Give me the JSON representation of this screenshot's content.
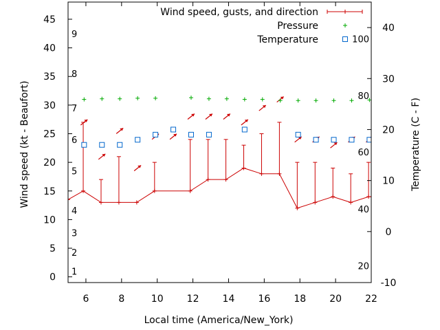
{
  "chart_data": {
    "type": "line",
    "xlabel": "Local time (America/New_York)",
    "ylabel": "Wind speed (kt - Beaufort)",
    "y2label": "Temperature (C - F)",
    "xlim": [
      5,
      22
    ],
    "ylim": [
      -1,
      48
    ],
    "y2lim": [
      -10,
      45
    ],
    "x_ticks": [
      6,
      8,
      10,
      12,
      14,
      16,
      18,
      20,
      22
    ],
    "y_ticks": [
      0,
      5,
      10,
      15,
      20,
      25,
      30,
      35,
      40,
      45
    ],
    "y2_ticks": [
      -10,
      0,
      10,
      20,
      30,
      40
    ],
    "beaufort_labels": [
      {
        "label": "1",
        "y": 1
      },
      {
        "label": "2",
        "y": 4.3
      },
      {
        "label": "3",
        "y": 7.7
      },
      {
        "label": "4",
        "y": 11.6
      },
      {
        "label": "5",
        "y": 18.5
      },
      {
        "label": "6",
        "y": 24
      },
      {
        "label": "7",
        "y": 29.5
      },
      {
        "label": "8",
        "y": 35.5
      },
      {
        "label": "9",
        "y": 42.5
      }
    ],
    "fahrenheit_labels": [
      {
        "label": "20",
        "y": -6.7
      },
      {
        "label": "40",
        "y": 4.4
      },
      {
        "label": "60",
        "y": 15.6
      },
      {
        "label": "80",
        "y": 26.7
      },
      {
        "label": "100",
        "y": 37.8
      }
    ],
    "legend": {
      "placement": "top-right",
      "entries": [
        {
          "label": "Wind speed, gusts, and direction",
          "color": "#cc0000",
          "marker": "line-plus"
        },
        {
          "label": "Pressure",
          "color": "#00aa00",
          "marker": "plus"
        },
        {
          "label": "Temperature",
          "color": "#0066cc",
          "marker": "square"
        }
      ]
    },
    "series": [
      {
        "name": "Wind speed, gusts, and direction",
        "color": "#cc0000",
        "x": [
          5,
          5.85,
          6.85,
          7.85,
          8.85,
          9.85,
          11.85,
          12.85,
          13.85,
          14.85,
          15.85,
          16.85,
          17.85,
          18.85,
          19.85,
          20.85,
          21.85,
          22
        ],
        "values": [
          13.5,
          15,
          13,
          13,
          13,
          15,
          15,
          17,
          17,
          19,
          18,
          18,
          12,
          13,
          14,
          13,
          14,
          14
        ],
        "gusts": [
          null,
          27,
          17,
          21,
          null,
          20,
          24,
          24,
          24,
          23,
          25,
          27,
          20,
          20,
          19,
          18,
          20,
          null
        ]
      },
      {
        "name": "Pressure",
        "color": "#00aa00",
        "x": [
          5.9,
          6.9,
          7.9,
          8.9,
          9.9,
          11.9,
          12.9,
          13.9,
          14.9,
          15.9,
          16.9,
          17.9,
          18.9,
          19.9,
          20.9,
          21.9
        ],
        "values": [
          31,
          31.1,
          31.1,
          31.2,
          31.2,
          31.3,
          31.1,
          31.1,
          31,
          31,
          30.8,
          30.8,
          30.8,
          30.8,
          30.8,
          30.9
        ]
      },
      {
        "name": "Temperature",
        "color": "#0066cc",
        "x": [
          5.9,
          6.9,
          7.9,
          8.9,
          9.9,
          10.9,
          11.9,
          12.9,
          14.9,
          17.9,
          18.9,
          19.9,
          20.9,
          21.9
        ],
        "values": [
          17,
          17,
          17,
          18,
          19,
          20,
          19,
          19,
          20,
          19,
          18,
          18,
          18,
          18
        ]
      }
    ],
    "wind_arrows": [
      {
        "x": 5.9,
        "y": 27
      },
      {
        "x": 6.9,
        "y": 21
      },
      {
        "x": 7.9,
        "y": 25.5
      },
      {
        "x": 8.9,
        "y": 19
      },
      {
        "x": 9.9,
        "y": 24.5
      },
      {
        "x": 10.9,
        "y": 24.5
      },
      {
        "x": 11.9,
        "y": 28
      },
      {
        "x": 12.9,
        "y": 28
      },
      {
        "x": 13.9,
        "y": 28
      },
      {
        "x": 14.9,
        "y": 27
      },
      {
        "x": 15.9,
        "y": 29.5
      },
      {
        "x": 16.9,
        "y": 31
      },
      {
        "x": 17.9,
        "y": 24
      },
      {
        "x": 18.9,
        "y": 24
      },
      {
        "x": 19.9,
        "y": 23
      },
      {
        "x": 20.9,
        "y": 24
      },
      {
        "x": 21.9,
        "y": 24
      }
    ]
  }
}
